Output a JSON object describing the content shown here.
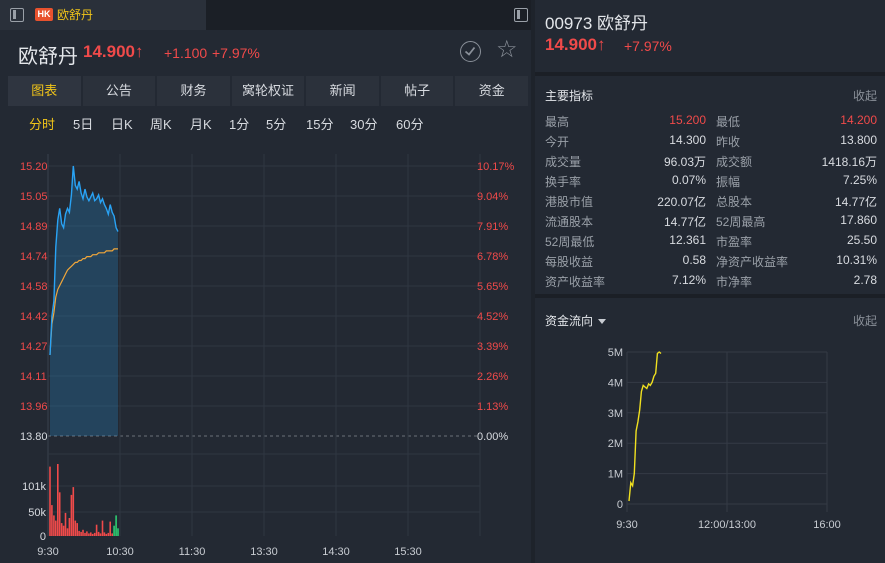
{
  "tab": {
    "badge": "HK",
    "name": "欧舒丹"
  },
  "header": {
    "name": "欧舒丹",
    "price": "14.900↑",
    "change": "+1.100",
    "change_pct": "+7.97%"
  },
  "subtabs": [
    "图表",
    "公告",
    "财务",
    "窝轮权证",
    "新闻",
    "帖子",
    "资金"
  ],
  "periods": [
    "分时",
    "5日",
    "日K",
    "周K",
    "月K",
    "1分",
    "5分",
    "15分",
    "30分",
    "60分"
  ],
  "colors": {
    "accent": "#f0c419",
    "up": "#f04a4a",
    "down": "#2ecc71",
    "price_line": "#29a3f5",
    "avg_line": "#f0a63a"
  },
  "chart_data": [
    {
      "type": "line",
      "title": "",
      "x_ticks": [
        "9:30",
        "10:30",
        "11:30",
        "13:30",
        "14:30",
        "15:30"
      ],
      "y_ticks": [
        "15.20",
        "15.05",
        "14.89",
        "14.74",
        "14.58",
        "14.42",
        "14.27",
        "14.11",
        "13.96",
        "13.80"
      ],
      "pct_ticks": [
        "10.17%",
        "9.04%",
        "7.91%",
        "6.78%",
        "5.65%",
        "4.52%",
        "3.39%",
        "2.26%",
        "1.13%",
        "0.00%"
      ],
      "ylim": [
        13.8,
        15.2
      ],
      "prev_close": 13.8,
      "series": [
        {
          "values": [
            14.22,
            14.42,
            14.5,
            14.78,
            14.92,
            14.98,
            14.9,
            14.88,
            14.95,
            14.98,
            14.96,
            15.05,
            15.2,
            15.1,
            15.08,
            15.12,
            15.06,
            15.03,
            15.08,
            15.04,
            15.02,
            15.04,
            15.06,
            15.02,
            15.03,
            15.05,
            15.01,
            15.03,
            15.0,
            14.98,
            14.95,
            15.0,
            14.96,
            14.94,
            14.88,
            14.86
          ]
        },
        {
          "values": [
            14.22,
            14.38,
            14.44,
            14.52,
            14.56,
            14.58,
            14.6,
            14.62,
            14.64,
            14.66,
            14.67,
            14.68,
            14.69,
            14.7,
            14.7,
            14.71,
            14.71,
            14.72,
            14.72,
            14.73,
            14.73,
            14.73,
            14.74,
            14.74,
            14.74,
            14.75,
            14.75,
            14.75,
            14.75,
            14.76,
            14.76,
            14.76,
            14.76,
            14.77,
            14.77,
            14.77
          ]
        }
      ]
    },
    {
      "type": "bar",
      "title": "",
      "y_ticks": [
        "101k",
        "50k",
        "0"
      ],
      "ylim": [
        0,
        140000
      ],
      "values": [
        135000,
        60000,
        40000,
        30000,
        140000,
        85000,
        25000,
        20000,
        45000,
        15000,
        35000,
        80000,
        95000,
        30000,
        25000,
        10000,
        8000,
        12000,
        6000,
        9000,
        5000,
        7000,
        4000,
        6000,
        22000,
        8000,
        5000,
        30000,
        7000,
        4000,
        6000,
        28000,
        5000,
        20000,
        40000,
        15000
      ],
      "colors": [
        "up",
        "up",
        "up",
        "up",
        "up",
        "up",
        "up",
        "up",
        "up",
        "up",
        "up",
        "up",
        "up",
        "up",
        "up",
        "up",
        "up",
        "up",
        "up",
        "up",
        "up",
        "up",
        "up",
        "up",
        "up",
        "up",
        "up",
        "up",
        "up",
        "up",
        "up",
        "up",
        "up",
        "down",
        "down",
        "down"
      ]
    },
    {
      "type": "line",
      "title": "",
      "x_ticks": [
        "9:30",
        "12:00/13:00",
        "16:00"
      ],
      "y_ticks": [
        "5M",
        "4M",
        "3M",
        "2M",
        "1M",
        "0"
      ],
      "ylim": [
        0,
        5
      ],
      "series": [
        {
          "values": [
            0.1,
            0.7,
            0.6,
            1.0,
            2.4,
            2.7,
            3.1,
            3.7,
            3.9,
            3.85,
            3.8,
            3.95,
            3.9,
            4.0,
            4.2,
            4.3,
            4.95,
            5.0,
            4.95
          ]
        }
      ]
    }
  ],
  "right": {
    "title": "00973 欧舒丹",
    "price": "14.900↑",
    "pct": "+7.97%",
    "indicators_title": "主要指标",
    "collapse": "收起",
    "flow_title": "资金流向",
    "rows": [
      {
        "l1": "最高",
        "v1": "15.200",
        "v1_red": true,
        "l2": "最低",
        "v2": "14.200",
        "v2_red": true
      },
      {
        "l1": "今开",
        "v1": "14.300",
        "l2": "昨收",
        "v2": "13.800"
      },
      {
        "l1": "成交量",
        "v1": "96.03万",
        "l2": "成交额",
        "v2": "1418.16万"
      },
      {
        "l1": "换手率",
        "v1": "0.07%",
        "l2": "振幅",
        "v2": "7.25%"
      },
      {
        "l1": "港股市值",
        "v1": "220.07亿",
        "l2": "总股本",
        "v2": "14.77亿"
      },
      {
        "l1": "流通股本",
        "v1": "14.77亿",
        "l2": "52周最高",
        "v2": "17.860"
      },
      {
        "l1": "52周最低",
        "v1": "12.361",
        "l2": "市盈率",
        "v2": "25.50"
      },
      {
        "l1": "每股收益",
        "v1": "0.58",
        "l2": "净资产收益率",
        "v2": "10.31%"
      },
      {
        "l1": "资产收益率",
        "v1": "7.12%",
        "l2": "市净率",
        "v2": "2.78"
      }
    ]
  }
}
